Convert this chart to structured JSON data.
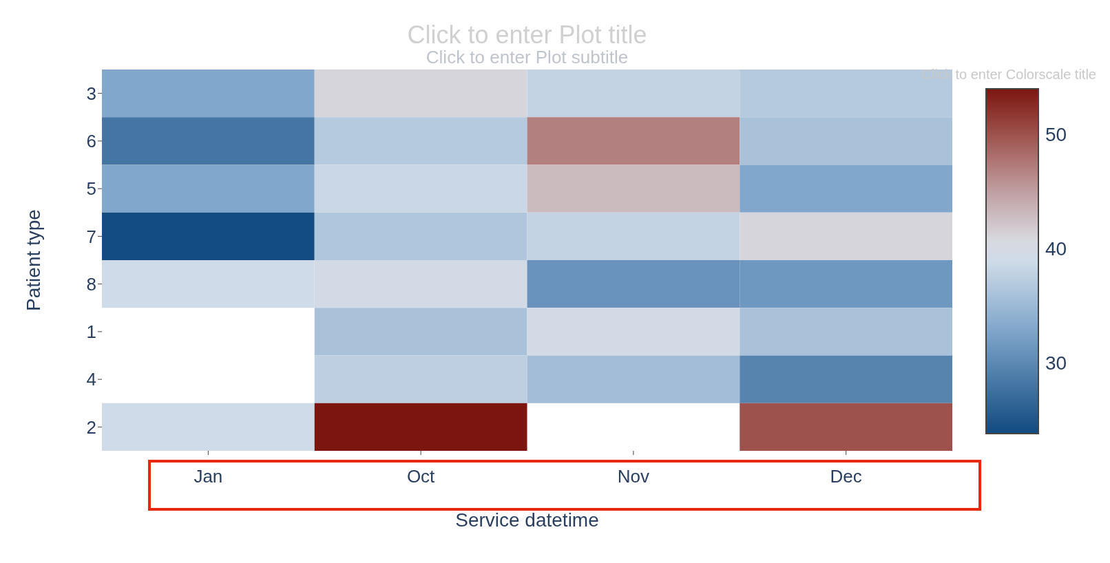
{
  "chart_data": {
    "type": "heatmap",
    "title": "Click to enter Plot title",
    "subtitle": "Click to enter Plot subtitle",
    "xlabel": "Service datetime",
    "ylabel": "Patient type",
    "clabel": "Click to enter Colorscale title",
    "categories": [
      "Jan",
      "Oct",
      "Nov",
      "Dec"
    ],
    "y_categories": [
      "3",
      "6",
      "5",
      "7",
      "8",
      "1",
      "4",
      "2"
    ],
    "cells": [
      [
        33,
        41,
        38,
        37
      ],
      [
        28,
        37,
        47,
        36
      ],
      [
        33,
        38.5,
        43,
        33
      ],
      [
        24,
        36.5,
        38,
        41
      ],
      [
        39,
        39.5,
        31,
        31.5
      ],
      [
        null,
        36,
        39.5,
        36
      ],
      [
        null,
        37.5,
        35.5,
        29.5
      ],
      [
        39,
        54,
        null,
        50
      ]
    ],
    "clim": [
      23.8,
      54
    ],
    "cticks": [
      30,
      40,
      50
    ]
  }
}
